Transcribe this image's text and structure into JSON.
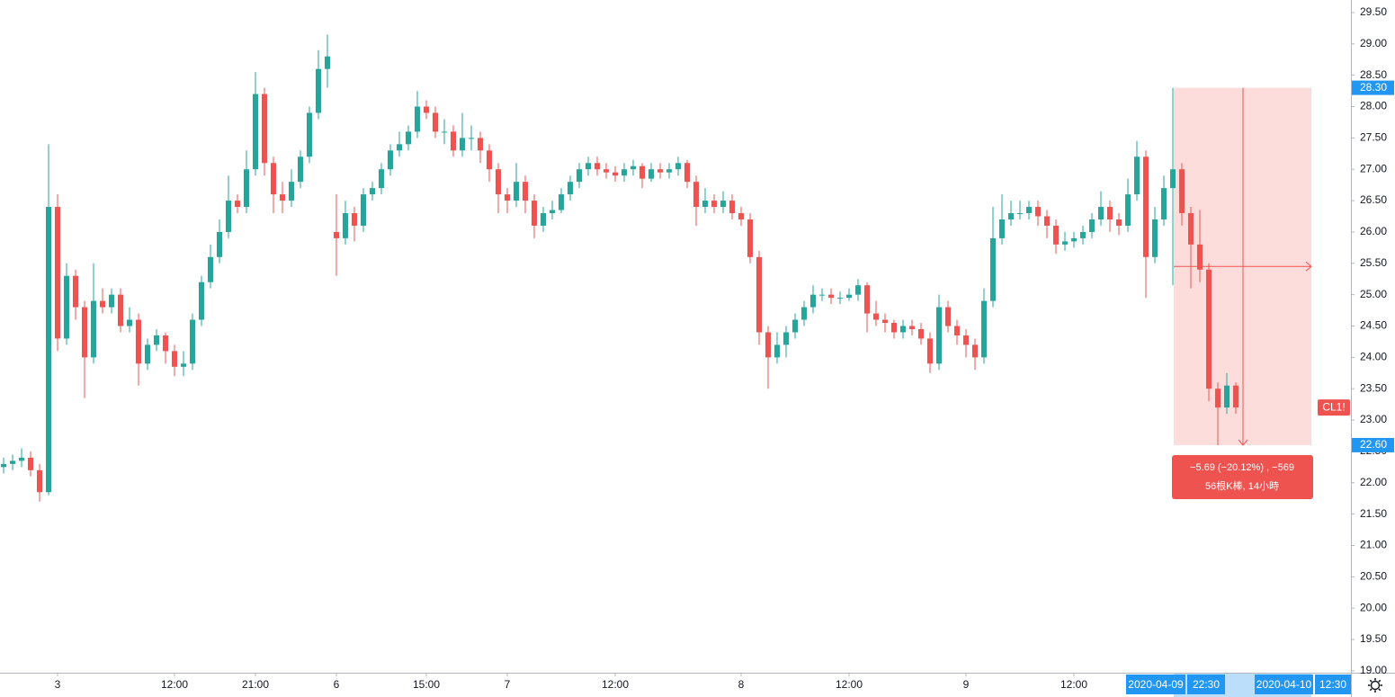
{
  "chart_data": {
    "type": "candlestick",
    "symbol": "CL1!",
    "up_color": "#26a69a",
    "down_color": "#ef5350",
    "grid": false,
    "ylim": [
      18.97,
      29.7
    ],
    "yticks": [
      {
        "value": 19,
        "label": "19.00"
      },
      {
        "value": 19.5,
        "label": "19.50"
      },
      {
        "value": 20,
        "label": "20.00"
      },
      {
        "value": 20.5,
        "label": "20.50"
      },
      {
        "value": 21,
        "label": "21.00"
      },
      {
        "value": 21.5,
        "label": "21.50"
      },
      {
        "value": 22,
        "label": "22.00"
      },
      {
        "value": 22.5,
        "label": "22.50"
      },
      {
        "value": 23,
        "label": "23.00"
      },
      {
        "value": 23.5,
        "label": "23.50"
      },
      {
        "value": 24,
        "label": "24.00"
      },
      {
        "value": 24.5,
        "label": "24.50"
      },
      {
        "value": 25,
        "label": "25.00"
      },
      {
        "value": 25.5,
        "label": "25.50"
      },
      {
        "value": 26,
        "label": "26.00"
      },
      {
        "value": 26.5,
        "label": "26.50"
      },
      {
        "value": 27,
        "label": "27.00"
      },
      {
        "value": 27.5,
        "label": "27.50"
      },
      {
        "value": 28,
        "label": "28.00"
      },
      {
        "value": 28.5,
        "label": "28.50"
      },
      {
        "value": 29,
        "label": "29.00"
      },
      {
        "value": 29.5,
        "label": "29.50"
      }
    ],
    "categories": [
      null,
      null,
      null,
      null,
      null,
      null,
      "3",
      null,
      null,
      null,
      null,
      null,
      null,
      null,
      null,
      null,
      null,
      null,
      null,
      "12:00",
      null,
      null,
      null,
      null,
      null,
      null,
      null,
      null,
      "21:00",
      null,
      null,
      null,
      null,
      null,
      null,
      null,
      null,
      "6",
      null,
      null,
      null,
      null,
      null,
      null,
      null,
      null,
      null,
      "15:00",
      null,
      null,
      null,
      null,
      null,
      null,
      null,
      null,
      "7",
      null,
      null,
      null,
      null,
      null,
      null,
      null,
      null,
      null,
      null,
      null,
      "12:00",
      null,
      null,
      null,
      null,
      null,
      null,
      null,
      null,
      null,
      null,
      null,
      null,
      null,
      "8",
      null,
      null,
      null,
      null,
      null,
      null,
      null,
      null,
      null,
      null,
      null,
      "12:00",
      null,
      null,
      null,
      null,
      null,
      null,
      null,
      null,
      null,
      null,
      null,
      null,
      "9",
      null,
      null,
      null,
      null,
      null,
      null,
      null,
      null,
      null,
      null,
      null,
      "12:00",
      null,
      null,
      null,
      null,
      null,
      null,
      null,
      null,
      null,
      null,
      null,
      null,
      null,
      null,
      null,
      null,
      null,
      null
    ],
    "open": [
      22.25,
      22.3,
      22.35,
      22.4,
      22.2,
      21.85,
      26.4,
      24.3,
      25.3,
      24.8,
      24.0,
      24.9,
      24.8,
      25.0,
      24.5,
      24.6,
      23.9,
      24.2,
      24.35,
      24.1,
      23.85,
      23.9,
      24.6,
      25.2,
      25.6,
      26.0,
      26.5,
      26.4,
      27.0,
      28.2,
      27.1,
      26.6,
      26.5,
      26.8,
      27.2,
      27.9,
      28.6,
      26.0,
      25.9,
      26.3,
      26.1,
      26.6,
      26.7,
      27.0,
      27.3,
      27.4,
      27.6,
      28.0,
      27.9,
      27.6,
      27.6,
      27.3,
      27.5,
      27.5,
      27.3,
      27.0,
      26.6,
      26.5,
      26.8,
      26.5,
      26.1,
      26.3,
      26.35,
      26.6,
      26.8,
      27.0,
      27.1,
      27.0,
      26.95,
      26.9,
      27.0,
      27.05,
      26.85,
      27.0,
      26.95,
      27.0,
      27.1,
      26.8,
      26.4,
      26.5,
      26.4,
      26.5,
      26.3,
      26.2,
      25.6,
      24.4,
      24.0,
      24.2,
      24.4,
      24.6,
      24.8,
      25.0,
      25.0,
      24.95,
      24.95,
      25.0,
      25.15,
      24.7,
      24.6,
      24.55,
      24.4,
      24.5,
      24.45,
      24.3,
      23.9,
      24.8,
      24.5,
      24.35,
      24.2,
      24.0,
      24.9,
      25.9,
      26.2,
      26.3,
      26.3,
      26.4,
      26.25,
      26.1,
      25.8,
      25.85,
      25.9,
      26.0,
      26.2,
      26.4,
      26.2,
      26.1,
      26.6,
      27.2,
      25.6,
      26.2,
      26.7,
      27.0,
      26.3,
      25.8,
      25.4,
      23.5,
      23.2,
      23.55
    ],
    "high": [
      22.4,
      22.45,
      22.55,
      22.5,
      22.3,
      27.4,
      26.6,
      25.5,
      25.4,
      24.9,
      25.5,
      25.1,
      25.1,
      25.1,
      24.8,
      24.7,
      24.3,
      24.45,
      24.4,
      24.2,
      24.1,
      24.7,
      25.3,
      25.8,
      26.2,
      26.9,
      26.6,
      27.3,
      28.55,
      28.3,
      27.2,
      26.8,
      27.0,
      27.3,
      28.0,
      28.9,
      29.15,
      26.6,
      26.5,
      26.4,
      26.7,
      26.8,
      27.1,
      27.4,
      27.6,
      27.7,
      28.25,
      28.1,
      28.0,
      27.8,
      27.7,
      27.9,
      27.7,
      27.6,
      27.4,
      27.1,
      26.7,
      27.1,
      26.9,
      26.6,
      26.4,
      26.5,
      26.7,
      26.9,
      27.1,
      27.2,
      27.2,
      27.1,
      27.05,
      27.1,
      27.15,
      27.1,
      27.1,
      27.1,
      27.1,
      27.2,
      27.15,
      26.9,
      26.7,
      26.6,
      26.65,
      26.6,
      26.4,
      26.3,
      25.7,
      24.5,
      24.4,
      24.5,
      24.7,
      24.9,
      25.15,
      25.1,
      25.1,
      25.05,
      25.1,
      25.25,
      25.2,
      24.9,
      24.7,
      24.6,
      24.6,
      24.6,
      24.55,
      24.4,
      25.0,
      24.9,
      24.6,
      24.45,
      24.3,
      25.1,
      26.4,
      26.6,
      26.5,
      26.5,
      26.5,
      26.5,
      26.35,
      26.2,
      26.0,
      26.0,
      26.1,
      26.3,
      26.65,
      26.5,
      26.3,
      26.85,
      27.45,
      27.3,
      26.4,
      26.9,
      28.3,
      27.1,
      26.4,
      26.35,
      25.5,
      23.6,
      23.75,
      23.6
    ],
    "low": [
      22.15,
      22.2,
      22.25,
      22.1,
      21.7,
      21.8,
      24.1,
      24.2,
      24.6,
      23.35,
      23.9,
      24.7,
      24.7,
      24.4,
      24.4,
      23.55,
      23.8,
      24.1,
      23.9,
      23.7,
      23.7,
      23.8,
      24.5,
      25.1,
      25.5,
      25.9,
      26.3,
      26.3,
      26.9,
      26.9,
      26.3,
      26.3,
      26.4,
      26.7,
      27.1,
      27.8,
      28.3,
      25.3,
      25.8,
      25.85,
      26.0,
      26.5,
      26.6,
      26.9,
      27.2,
      27.3,
      27.5,
      27.8,
      27.5,
      27.4,
      27.2,
      27.2,
      27.3,
      27.1,
      26.8,
      26.3,
      26.3,
      26.4,
      26.3,
      25.9,
      26.0,
      26.2,
      26.3,
      26.5,
      26.7,
      26.9,
      26.9,
      26.85,
      26.8,
      26.8,
      26.9,
      26.7,
      26.8,
      26.85,
      26.85,
      26.9,
      26.7,
      26.1,
      26.3,
      26.3,
      26.3,
      26.2,
      26.1,
      25.5,
      24.2,
      23.5,
      23.9,
      24.0,
      24.3,
      24.5,
      24.7,
      24.9,
      24.85,
      24.85,
      24.9,
      24.9,
      24.4,
      24.5,
      24.4,
      24.3,
      24.3,
      24.35,
      24.2,
      23.75,
      23.8,
      24.4,
      24.2,
      24.0,
      23.8,
      23.9,
      24.8,
      25.8,
      26.1,
      26.2,
      26.2,
      26.1,
      25.9,
      25.65,
      25.7,
      25.75,
      25.8,
      25.9,
      26.1,
      26.0,
      25.95,
      26.0,
      26.5,
      24.95,
      25.5,
      26.1,
      25.15,
      26.1,
      25.1,
      25.2,
      23.3,
      22.6,
      23.1,
      23.1
    ],
    "close": [
      22.3,
      22.35,
      22.4,
      22.2,
      21.85,
      26.4,
      24.3,
      25.3,
      24.8,
      24.0,
      24.9,
      24.8,
      25.0,
      24.5,
      24.6,
      23.9,
      24.2,
      24.35,
      24.1,
      23.85,
      23.9,
      24.6,
      25.2,
      25.6,
      26.0,
      26.5,
      26.4,
      27.0,
      28.2,
      27.1,
      26.6,
      26.5,
      26.8,
      27.2,
      27.9,
      28.6,
      28.8,
      25.9,
      26.3,
      26.1,
      26.6,
      26.7,
      27.0,
      27.3,
      27.4,
      27.6,
      28.0,
      27.9,
      27.6,
      27.6,
      27.3,
      27.5,
      27.5,
      27.3,
      27.0,
      26.6,
      26.5,
      26.8,
      26.5,
      26.1,
      26.3,
      26.35,
      26.6,
      26.8,
      27.0,
      27.1,
      27.0,
      26.95,
      26.9,
      27.0,
      27.05,
      26.85,
      27.0,
      26.95,
      27.0,
      27.1,
      26.8,
      26.4,
      26.5,
      26.4,
      26.5,
      26.3,
      26.2,
      25.6,
      24.4,
      24.0,
      24.2,
      24.4,
      24.6,
      24.8,
      25.0,
      25.0,
      24.95,
      24.95,
      25.0,
      25.15,
      24.7,
      24.6,
      24.55,
      24.4,
      24.5,
      24.45,
      24.3,
      23.9,
      24.8,
      24.5,
      24.35,
      24.2,
      24.0,
      24.9,
      25.9,
      26.2,
      26.3,
      26.3,
      26.4,
      26.25,
      26.1,
      25.8,
      25.85,
      25.9,
      26.0,
      26.2,
      26.4,
      26.2,
      26.1,
      26.6,
      27.2,
      25.6,
      26.2,
      26.7,
      27.0,
      26.3,
      25.8,
      25.4,
      23.5,
      23.2,
      23.55,
      23.2
    ],
    "measure": {
      "color": "#ef5350",
      "price_range": [
        {
          "value": 28.3,
          "label": "28.30"
        },
        {
          "value": 22.6,
          "label": "22.60"
        }
      ],
      "change_label": "−5.69 (−20.12%) , −569",
      "bars_label": "56根K棒, 14小時",
      "start_date": "2020-04-09",
      "start_time": "22:30",
      "end_date": "2020-04-10",
      "end_time": "12:30"
    }
  }
}
